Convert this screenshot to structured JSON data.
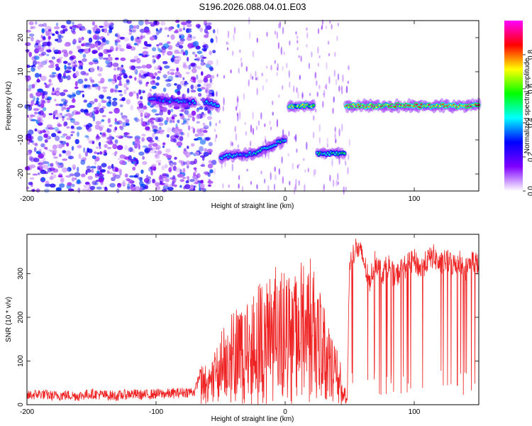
{
  "title": "S196.2026.088.04.01.E03",
  "chart_data": [
    {
      "type": "heatmap",
      "name": "spectrogram",
      "title": "S196.2026.088.04.01.E03",
      "xlabel": "Height of straight line (km)",
      "ylabel": "Frequency (Hz)",
      "xlim": [
        -200,
        150
      ],
      "ylim": [
        -25,
        25
      ],
      "x_ticks": [
        -200,
        -100,
        0,
        100
      ],
      "y_ticks": [
        -20,
        -10,
        0,
        10,
        20
      ],
      "x_tick_labels": [
        "-200",
        "-100",
        "0",
        "100"
      ],
      "y_tick_labels": [
        "-20",
        "-10",
        "0",
        "10",
        "20"
      ],
      "colorbar": {
        "label": "Normalized spectral amplitude",
        "range": [
          0,
          1
        ],
        "ticks": [
          0.0,
          0.2,
          0.4,
          0.6,
          0.8
        ],
        "tick_labels": [
          "0.0",
          "0.2",
          "0.4",
          "0.6",
          "0.8"
        ],
        "colors": [
          "#ffffff",
          "#8000ff",
          "#0000ff",
          "#00ffff",
          "#00ff00",
          "#ffff00",
          "#ff0000",
          "#ff00ff"
        ]
      },
      "noise_region": {
        "x": [
          -200,
          -55
        ],
        "y": [
          -25,
          25
        ],
        "amplitude": 0.25
      },
      "tracks": [
        {
          "x": [
            -105,
            -70
          ],
          "freq": [
            2,
            1
          ],
          "amplitude": 0.4
        },
        {
          "x": [
            -62,
            -52
          ],
          "freq": [
            1,
            0
          ],
          "amplitude": 0.45
        },
        {
          "x": [
            -50,
            -25
          ],
          "freq": [
            -15,
            -14
          ],
          "amplitude": 0.45
        },
        {
          "x": [
            -25,
            0
          ],
          "freq": [
            -14,
            -10
          ],
          "amplitude": 0.5
        },
        {
          "x": [
            3,
            22
          ],
          "freq": [
            0,
            0
          ],
          "amplitude": 0.75
        },
        {
          "x": [
            25,
            46
          ],
          "freq": [
            -14,
            -14
          ],
          "amplitude": 0.55
        },
        {
          "x": [
            47,
            150
          ],
          "freq": [
            0,
            0
          ],
          "amplitude": 0.95
        }
      ]
    },
    {
      "type": "line",
      "name": "snr",
      "xlabel": "Height of straight line (km)",
      "ylabel": "SNR (10 * v/v)",
      "xlim": [
        -200,
        150
      ],
      "ylim": [
        0,
        390
      ],
      "x_ticks": [
        -200,
        -100,
        0,
        100
      ],
      "y_ticks": [
        0,
        100,
        200,
        300
      ],
      "x_tick_labels": [
        "-200",
        "-100",
        "0",
        "100"
      ],
      "y_tick_labels": [
        "0",
        "100",
        "200",
        "300"
      ],
      "series": [
        {
          "name": "SNR",
          "color": "#ee2222",
          "x": [
            -200,
            -190,
            -180,
            -170,
            -160,
            -150,
            -140,
            -130,
            -120,
            -110,
            -100,
            -90,
            -80,
            -70,
            -65,
            -60,
            -55,
            -50,
            -45,
            -40,
            -35,
            -30,
            -25,
            -20,
            -15,
            -10,
            -5,
            0,
            5,
            10,
            15,
            20,
            25,
            30,
            35,
            40,
            45,
            48,
            50,
            55,
            60,
            65,
            70,
            75,
            80,
            85,
            90,
            95,
            100,
            105,
            110,
            115,
            120,
            125,
            130,
            135,
            140,
            145,
            150
          ],
          "values": [
            20,
            25,
            20,
            22,
            20,
            25,
            22,
            20,
            25,
            22,
            25,
            25,
            28,
            30,
            80,
            90,
            110,
            150,
            170,
            190,
            200,
            210,
            230,
            250,
            260,
            280,
            300,
            290,
            240,
            270,
            320,
            300,
            240,
            200,
            140,
            120,
            60,
            10,
            330,
            360,
            340,
            280,
            330,
            300,
            320,
            290,
            310,
            320,
            330,
            310,
            330,
            340,
            320,
            330,
            320,
            330,
            310,
            330,
            320
          ]
        }
      ]
    }
  ]
}
